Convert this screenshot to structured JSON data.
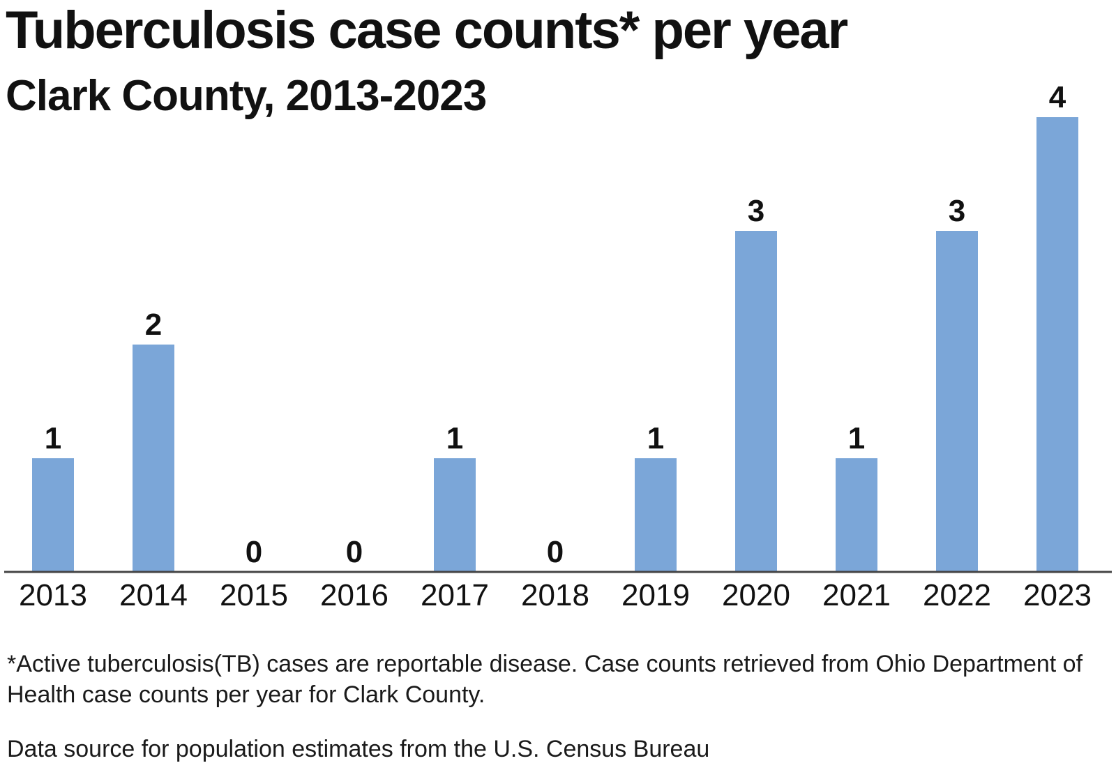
{
  "chart_data": {
    "type": "bar",
    "title": "Tuberculosis case counts* per year",
    "subtitle": "Clark County, 2013-2023",
    "categories": [
      "2013",
      "2014",
      "2015",
      "2016",
      "2017",
      "2018",
      "2019",
      "2020",
      "2021",
      "2022",
      "2023"
    ],
    "values": [
      1,
      2,
      0,
      0,
      1,
      0,
      1,
      3,
      1,
      3,
      4
    ],
    "xlabel": "",
    "ylabel": "",
    "ylim": [
      0,
      4
    ],
    "grid": false,
    "bar_color": "#7ba6d8",
    "footnote": "*Active tuberculosis(TB) cases are reportable disease. Case counts retrieved from Ohio Department of Health case counts per year for Clark County.",
    "source": "Data source for population estimates from the U.S. Census Bureau"
  }
}
